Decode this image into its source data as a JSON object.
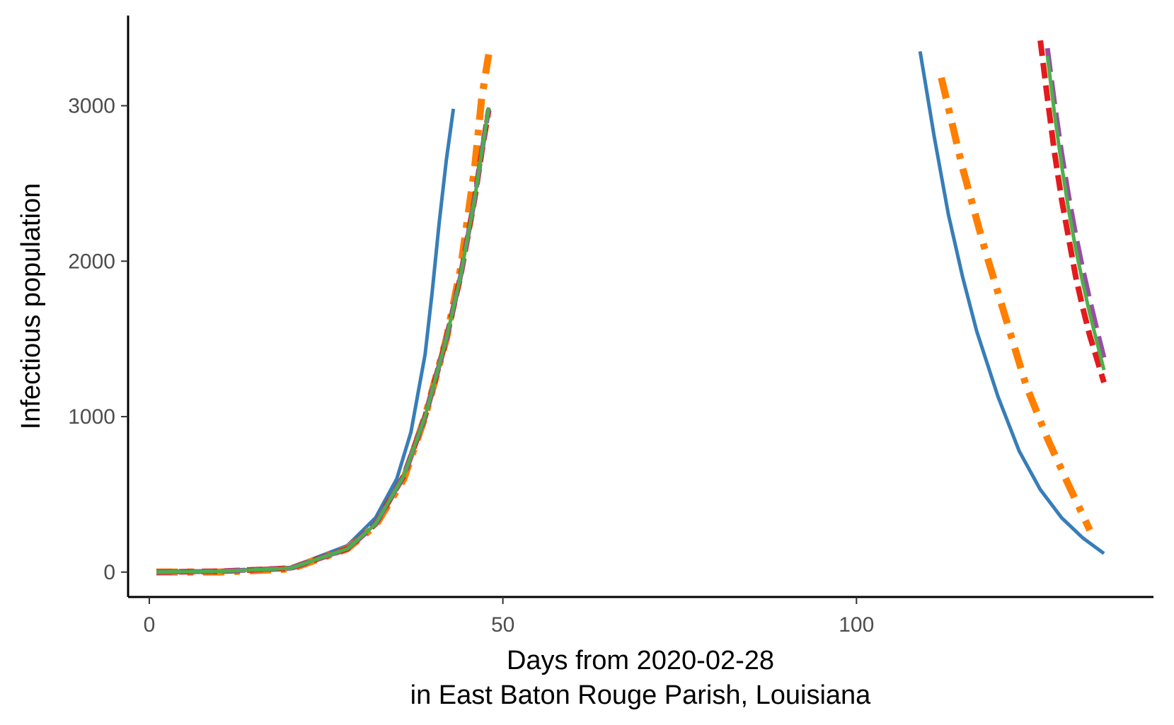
{
  "chart_data": {
    "type": "line",
    "xlabel": [
      "Days from 2020-02-28",
      "in East Baton Rouge Parish, Louisiana"
    ],
    "ylabel": "Infectious population",
    "xlim": [
      -3,
      142
    ],
    "ylim": [
      -160,
      3580
    ],
    "xticks": [
      0,
      50,
      100
    ],
    "yticks": [
      0,
      1000,
      2000,
      3000
    ],
    "grid": false,
    "series": [
      {
        "color": "#377eb8",
        "dash": "solid",
        "segments": [
          {
            "x": [
              1,
              10,
              20,
              28,
              32,
              35,
              37,
              39,
              40,
              41,
              42,
              43
            ],
            "y": [
              0,
              5,
              30,
              170,
              350,
              600,
              900,
              1400,
              1800,
              2250,
              2650,
              2980
            ]
          },
          {
            "x": [
              109,
              111,
              113,
              115,
              117,
              120,
              123,
              126,
              129,
              132,
              135
            ],
            "y": [
              3350,
              2800,
              2300,
              1900,
              1550,
              1130,
              780,
              530,
              350,
              220,
              120
            ]
          }
        ]
      },
      {
        "color": "#ff7f00",
        "dash": "dashdot",
        "segments": [
          {
            "x": [
              1,
              10,
              20,
              28,
              32,
              36,
              39,
              42,
              44,
              46,
              47,
              48
            ],
            "y": [
              0,
              0,
              20,
              150,
              300,
              600,
              1000,
              1500,
              1950,
              2600,
              3050,
              3330
            ]
          },
          {
            "x": [
              112,
              115,
              118,
              121,
              124,
              127,
              130,
              133
            ],
            "y": [
              3180,
              2600,
              2100,
              1650,
              1200,
              860,
              560,
              270
            ]
          }
        ]
      },
      {
        "color": "#e41a1c",
        "dash": "dashed",
        "segments": [
          {
            "x": [
              1,
              10,
              20,
              28,
              32,
              36,
              39,
              42,
              44,
              46,
              47,
              48
            ],
            "y": [
              0,
              5,
              25,
              150,
              310,
              620,
              1000,
              1500,
              1900,
              2400,
              2700,
              2970
            ]
          },
          {
            "x": [
              126,
              127,
              128,
              129,
              130,
              131,
              132,
              133,
              134,
              135
            ],
            "y": [
              3420,
              3050,
              2700,
              2400,
              2150,
              1900,
              1700,
              1520,
              1370,
              1220
            ]
          }
        ]
      },
      {
        "color": "#984ea3",
        "dash": "longdash",
        "segments": [
          {
            "x": [
              1,
              10,
              20,
              28,
              32,
              36,
              39,
              42,
              44,
              46,
              47,
              48
            ],
            "y": [
              0,
              5,
              25,
              150,
              310,
              620,
              1000,
              1500,
              1900,
              2400,
              2700,
              2980
            ]
          },
          {
            "x": [
              127,
              128,
              129,
              130,
              131,
              132,
              133,
              134,
              135
            ],
            "y": [
              3370,
              3020,
              2700,
              2420,
              2170,
              1950,
              1750,
              1560,
              1380
            ]
          }
        ]
      },
      {
        "color": "#4daf4a",
        "dash": "solid",
        "segments": [
          {
            "x": [
              1,
              10,
              20,
              28,
              32,
              36,
              39,
              42,
              44,
              46,
              47,
              48
            ],
            "y": [
              0,
              5,
              25,
              150,
              310,
              620,
              1000,
              1500,
              1900,
              2400,
              2700,
              2990
            ]
          },
          {
            "x": [
              127,
              128,
              129,
              130,
              131,
              132,
              133,
              134,
              135
            ],
            "y": [
              3320,
              2950,
              2620,
              2330,
              2080,
              1860,
              1660,
              1480,
              1300
            ]
          }
        ]
      }
    ]
  }
}
